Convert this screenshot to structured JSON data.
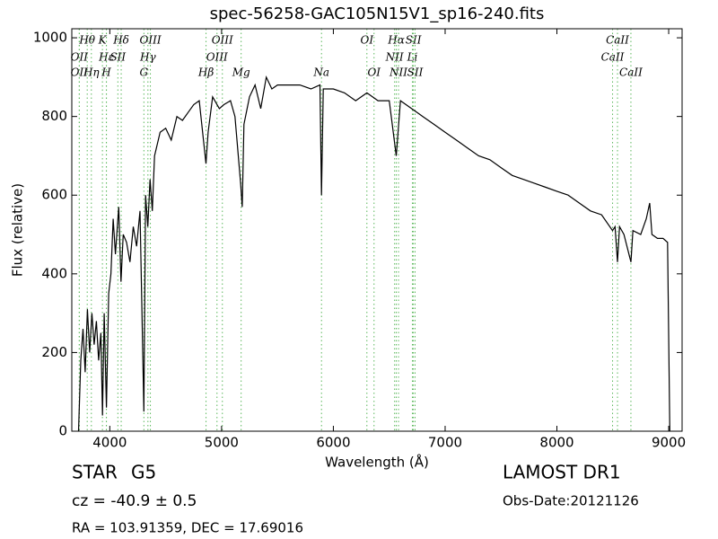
{
  "chart_data": {
    "type": "line",
    "title": "spec-56258-GAC105N15V1_sp16-240.fits",
    "x_label": "Wavelength (Å)",
    "y_label": "Flux (relative)",
    "xlim": [
      3660,
      9120
    ],
    "ylim": [
      0,
      1023
    ],
    "xticks": [
      4000,
      5000,
      6000,
      7000,
      8000,
      9000
    ],
    "yticks": [
      0,
      200,
      400,
      600,
      800,
      1000
    ],
    "line_color": "#5cb85c",
    "annotations": [
      [
        {
          "x": 3798,
          "label": "Hθ"
        },
        {
          "x": 3934,
          "label": "K"
        },
        {
          "x": 4102,
          "label": "Hδ"
        },
        {
          "x": 4363,
          "label": "OIII"
        },
        {
          "x": 5007,
          "label": "OIII"
        },
        {
          "x": 6300,
          "label": "OI"
        },
        {
          "x": 6563,
          "label": "Hα"
        },
        {
          "x": 6716,
          "label": "SII"
        },
        {
          "x": 8542,
          "label": "CaII"
        }
      ],
      [
        {
          "x": 3727,
          "label": "OII"
        },
        {
          "x": 3970,
          "label": "Hε"
        },
        {
          "x": 4072,
          "label": "SII"
        },
        {
          "x": 4341,
          "label": "Hγ"
        },
        {
          "x": 4959,
          "label": "OIII"
        },
        {
          "x": 6548,
          "label": "NII"
        },
        {
          "x": 6707,
          "label": "Li"
        },
        {
          "x": 8498,
          "label": "CaII"
        }
      ],
      [
        {
          "x": 3727,
          "label": "OII"
        },
        {
          "x": 3835,
          "label": "Hη"
        },
        {
          "x": 3969,
          "label": "H"
        },
        {
          "x": 4305,
          "label": "G"
        },
        {
          "x": 4861,
          "label": "Hβ"
        },
        {
          "x": 5175,
          "label": "Mg"
        },
        {
          "x": 5894,
          "label": "Na"
        },
        {
          "x": 6364,
          "label": "OI"
        },
        {
          "x": 6583,
          "label": "NII"
        },
        {
          "x": 6731,
          "label": "SII"
        },
        {
          "x": 8662,
          "label": "CaII"
        }
      ]
    ],
    "series": [
      {
        "name": "flux",
        "color": "#000000",
        "x": [
          3720,
          3740,
          3760,
          3780,
          3800,
          3820,
          3840,
          3860,
          3880,
          3900,
          3920,
          3935,
          3950,
          3970,
          3990,
          4010,
          4030,
          4050,
          4080,
          4100,
          4120,
          4150,
          4180,
          4210,
          4240,
          4270,
          4305,
          4320,
          4340,
          4360,
          4380,
          4400,
          4450,
          4500,
          4550,
          4600,
          4650,
          4700,
          4750,
          4800,
          4860,
          4880,
          4920,
          4980,
          5020,
          5080,
          5120,
          5170,
          5185,
          5200,
          5250,
          5300,
          5350,
          5400,
          5450,
          5500,
          5600,
          5700,
          5800,
          5880,
          5894,
          5910,
          6000,
          6100,
          6200,
          6300,
          6400,
          6500,
          6563,
          6600,
          6700,
          6800,
          6900,
          7000,
          7100,
          7200,
          7300,
          7400,
          7500,
          7600,
          7700,
          7800,
          7900,
          8000,
          8100,
          8200,
          8300,
          8400,
          8498,
          8520,
          8542,
          8560,
          8600,
          8662,
          8680,
          8750,
          8800,
          8830,
          8850,
          8900,
          8950,
          8990,
          9010
        ],
        "values": [
          0,
          180,
          260,
          150,
          310,
          200,
          300,
          220,
          280,
          180,
          250,
          40,
          300,
          60,
          350,
          400,
          540,
          450,
          570,
          380,
          500,
          480,
          430,
          520,
          470,
          560,
          50,
          600,
          520,
          640,
          560,
          700,
          760,
          770,
          740,
          800,
          790,
          810,
          830,
          840,
          680,
          760,
          850,
          820,
          830,
          840,
          800,
          630,
          570,
          780,
          850,
          880,
          820,
          900,
          870,
          880,
          880,
          880,
          870,
          880,
          600,
          870,
          870,
          860,
          840,
          860,
          840,
          840,
          700,
          840,
          820,
          800,
          780,
          760,
          740,
          720,
          700,
          690,
          670,
          650,
          640,
          630,
          620,
          610,
          600,
          580,
          560,
          550,
          510,
          520,
          430,
          520,
          500,
          430,
          510,
          500,
          540,
          580,
          500,
          490,
          490,
          480,
          0
        ]
      }
    ]
  },
  "footer": {
    "object_class": "STAR",
    "subclass": "G5",
    "redshift": "cz = -40.9 ± 0.5",
    "coords": "RA = 103.91359, DEC = 17.69016",
    "survey": "LAMOST DR1",
    "obs_date": "Obs-Date:20121126"
  }
}
